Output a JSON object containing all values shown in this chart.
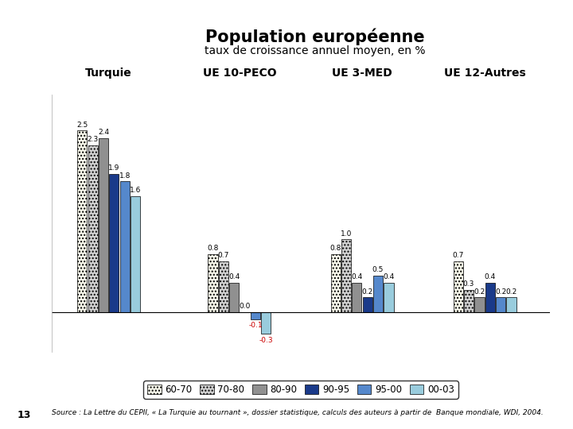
{
  "title": "Population européenne",
  "subtitle": "taux de croissance annuel moyen, en %",
  "groups": [
    "Turquie",
    "UE 10-PECO",
    "UE 3-MED",
    "UE 12-Autres"
  ],
  "series_labels": [
    "60-70",
    "70-80",
    "80-90",
    "90-95",
    "95-00",
    "00-03"
  ],
  "bar_colors": [
    "#f5f5e8",
    "#d0d0d0",
    "#909090",
    "#1a3a8a",
    "#5588cc",
    "#99ccdd"
  ],
  "bar_hatches": [
    "....",
    "....",
    "",
    "",
    "",
    ""
  ],
  "data": [
    [
      2.5,
      2.3,
      2.4,
      1.9,
      1.8,
      1.6
    ],
    [
      0.8,
      0.7,
      0.4,
      0.0,
      -0.1,
      -0.3
    ],
    [
      0.8,
      1.0,
      0.4,
      0.2,
      0.5,
      0.4
    ],
    [
      0.7,
      0.3,
      0.2,
      0.4,
      0.2,
      0.2
    ]
  ],
  "source_text": "Source : La Lettre du CEPII, « La Turquie au tournant », dossier statistique, calculs des auteurs à partir de  Banque mondiale, WDI, 2004.",
  "page_number": "13",
  "ylim": [
    -0.55,
    3.0
  ],
  "xlim": [
    -0.2,
    5.9
  ],
  "group_centers": [
    0.5,
    2.1,
    3.6,
    5.1
  ],
  "background_color": "#ffffff",
  "negative_label_color": "#cc0000",
  "bar_width": 0.13
}
